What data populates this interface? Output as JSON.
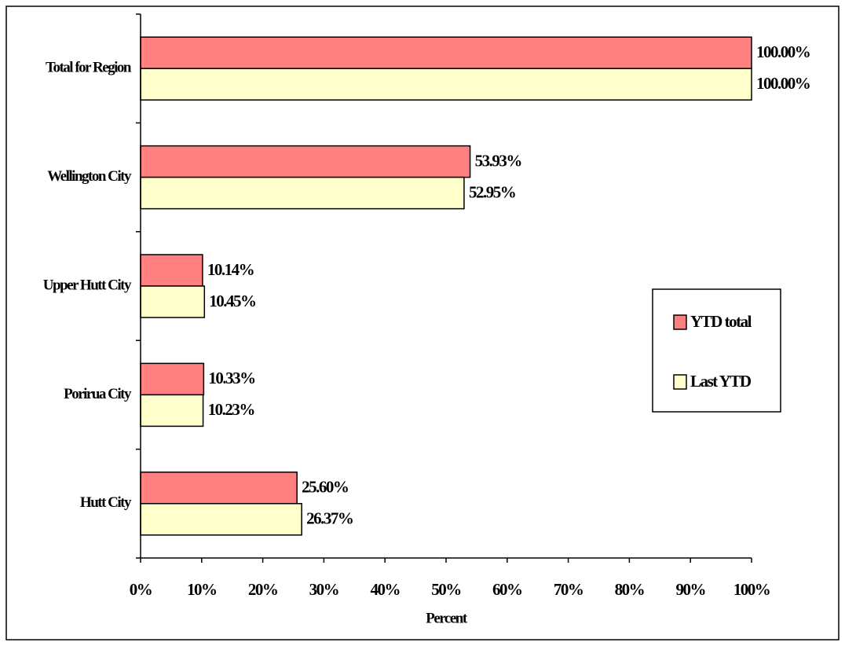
{
  "chart_data": {
    "type": "bar",
    "orientation": "horizontal",
    "x_label": "Percent",
    "categories": [
      "Total for Region",
      "Wellington City",
      "Upper Hutt City",
      "Porirua City",
      "Hutt City"
    ],
    "series": [
      {
        "name": "YTD total",
        "color": "#ff8080",
        "values": [
          100,
          53.93,
          10.14,
          10.33,
          25.6
        ],
        "value_labels": [
          "100.00%",
          "53.93%",
          "10.14%",
          "10.33%",
          "25.60%"
        ]
      },
      {
        "name": "Last YTD",
        "color": "#ffffcc",
        "values": [
          100,
          52.95,
          10.45,
          10.23,
          26.37
        ],
        "value_labels": [
          "100.00%",
          "52.95%",
          "10.45%",
          "10.23%",
          "26.37%"
        ]
      }
    ],
    "xlim": [
      0,
      100
    ],
    "xticks": [
      {
        "value": 0,
        "label": "0%"
      },
      {
        "value": 10,
        "label": "10%"
      },
      {
        "value": 20,
        "label": "20%"
      },
      {
        "value": 30,
        "label": "30%"
      },
      {
        "value": 40,
        "label": "40%"
      },
      {
        "value": 50,
        "label": "50%"
      },
      {
        "value": 60,
        "label": "60%"
      },
      {
        "value": 70,
        "label": "70%"
      },
      {
        "value": 80,
        "label": "80%"
      },
      {
        "value": 90,
        "label": "90%"
      },
      {
        "value": 100,
        "label": "100%"
      }
    ],
    "legend": "right"
  }
}
